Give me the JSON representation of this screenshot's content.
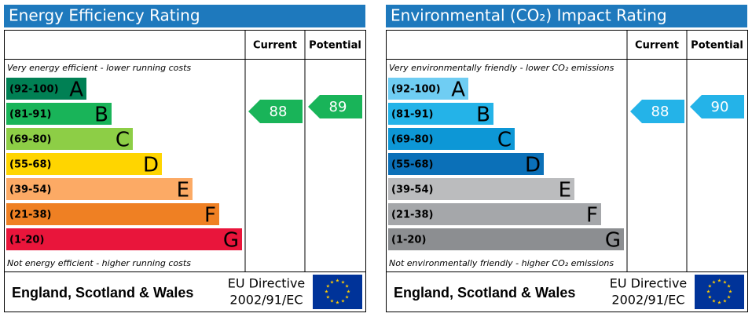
{
  "panels": [
    {
      "title": "Energy Efficiency Rating",
      "headers": [
        "Current",
        "Potential"
      ],
      "top_note": "Very energy efficient - lower running costs",
      "bottom_note": "Not energy efficient - higher running costs",
      "bands": [
        {
          "range": "(92-100)",
          "letter": "A",
          "color": "#008054"
        },
        {
          "range": "(81-91)",
          "letter": "B",
          "color": "#19b459"
        },
        {
          "range": "(69-80)",
          "letter": "C",
          "color": "#8dce46"
        },
        {
          "range": "(55-68)",
          "letter": "D",
          "color": "#ffd500"
        },
        {
          "range": "(39-54)",
          "letter": "E",
          "color": "#fcaa65"
        },
        {
          "range": "(21-38)",
          "letter": "F",
          "color": "#ef8023"
        },
        {
          "range": "(1-20)",
          "letter": "G",
          "color": "#e9153b"
        }
      ],
      "current": 88,
      "potential": 89,
      "footer": {
        "region": "England, Scotland & Wales",
        "directive": "EU Directive",
        "code": "2002/91/EC"
      }
    },
    {
      "title": "Environmental (CO₂) Impact Rating",
      "headers": [
        "Current",
        "Potential"
      ],
      "top_note": "Very environmentally friendly - lower CO₂ emissions",
      "bottom_note": "Not environmentally friendly - higher CO₂ emissions",
      "bands": [
        {
          "range": "(92-100)",
          "letter": "A",
          "color": "#6fcdf3"
        },
        {
          "range": "(81-91)",
          "letter": "B",
          "color": "#24b3e8"
        },
        {
          "range": "(69-80)",
          "letter": "C",
          "color": "#0d97d6"
        },
        {
          "range": "(55-68)",
          "letter": "D",
          "color": "#0b70b8"
        },
        {
          "range": "(39-54)",
          "letter": "E",
          "color": "#bbbcbe"
        },
        {
          "range": "(21-38)",
          "letter": "F",
          "color": "#a5a7aa"
        },
        {
          "range": "(1-20)",
          "letter": "G",
          "color": "#8c8e91"
        }
      ],
      "current": 88,
      "potential": 90,
      "footer": {
        "region": "England, Scotland & Wales",
        "directive": "EU Directive",
        "code": "2002/91/EC"
      }
    }
  ]
}
